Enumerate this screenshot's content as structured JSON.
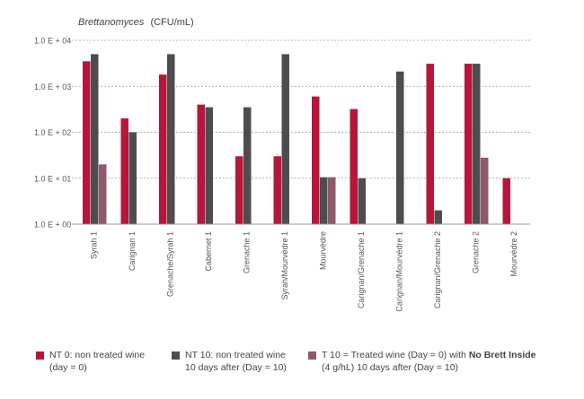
{
  "chart_data": {
    "type": "bar",
    "title_italic": "Brettanomyces",
    "title_unit": "(CFU/mL)",
    "y_scale": "log",
    "ylim": [
      1,
      10000
    ],
    "y_ticks": [
      {
        "value": 10000,
        "label": "1.0 E + 04"
      },
      {
        "value": 1000,
        "label": "1.0 E + 03"
      },
      {
        "value": 100,
        "label": "1.0 E + 02"
      },
      {
        "value": 10,
        "label": "1.0 E + 01"
      },
      {
        "value": 1,
        "label": "1.0 E + 00"
      }
    ],
    "grid": true,
    "categories": [
      "Syrah 1",
      "Carignan 1",
      "Grenache/Syrah 1",
      "Cabernet 1",
      "Grenache 1",
      "Syrah/Mourvèdre 1",
      "Mourvèdre",
      "Carignan/Grenache 1",
      "Carignan/Mourvèdre 1",
      "Carignan/Grenache 2",
      "Grenache 2",
      "Mourvèdre 2"
    ],
    "series": [
      {
        "name": "NT 0",
        "color": "#b5163a",
        "values": [
          3500,
          200,
          1800,
          400,
          30,
          30,
          600,
          320,
          null,
          3100,
          3100,
          10
        ]
      },
      {
        "name": "NT 10",
        "color": "#4d4d4f",
        "values": [
          5000,
          100,
          5000,
          350,
          350,
          5000,
          10.5,
          10,
          2100,
          2,
          3100,
          null
        ]
      },
      {
        "name": "T 10",
        "color": "#8e5a6b",
        "values": [
          20,
          null,
          null,
          null,
          null,
          null,
          10.5,
          null,
          null,
          null,
          28,
          null
        ]
      }
    ],
    "legend_position": "bottom"
  },
  "legend": {
    "nt0_line1": "NT 0: non treated wine",
    "nt0_line2": "(day = 0)",
    "nt10_line1": "NT 10: non treated wine",
    "nt10_line2": "10 days after (Day = 10)",
    "t10_line1_pre": "T 10 = Treated wine (Day = 0) with",
    "t10_line1_bold": "No Brett Inside",
    "t10_line2": "(4 g/hL) 10 days after (Day = 10)"
  }
}
